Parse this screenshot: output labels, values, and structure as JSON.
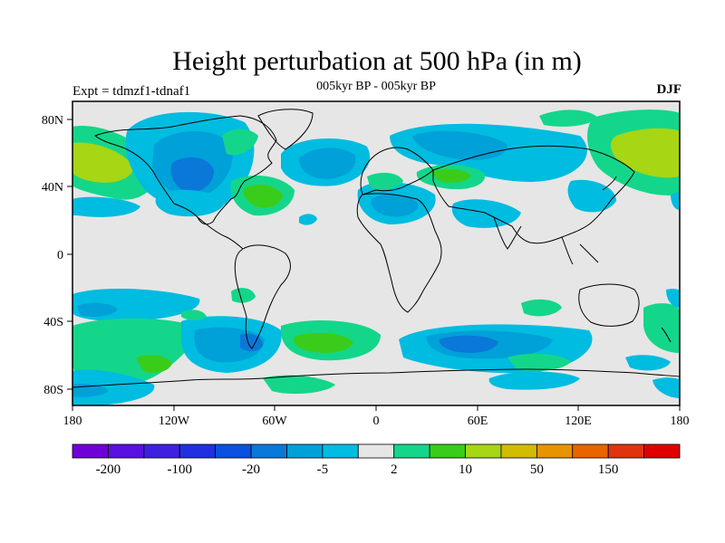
{
  "header": {
    "title": "Height perturbation at 500 hPa (in m)",
    "subtitle": "005kyr BP - 005kyr BP",
    "left_string": "Expt = tdmzf1-tdnaf1",
    "right_string": "DJF"
  },
  "map": {
    "projection": "cylindrical-equidistant",
    "x_ticks": [
      "180",
      "120W",
      "60W",
      "0",
      "60E",
      "120E",
      "180"
    ],
    "y_ticks": [
      "80N",
      "40N",
      "0",
      "40S",
      "80S"
    ],
    "background_color": "#e6e6e6",
    "coast_color": "#000000"
  },
  "colorbar": {
    "colors": [
      "#7000d8",
      "#5a10e0",
      "#4020e0",
      "#2030e0",
      "#0c50e0",
      "#0a78d8",
      "#00a0d8",
      "#00bce0",
      "#e6e6e6",
      "#14d68a",
      "#3acc1a",
      "#a6d614",
      "#d2bc00",
      "#e69400",
      "#e86400",
      "#e03410",
      "#e00000"
    ],
    "labels": [
      "-200",
      "-100",
      "-20",
      "-5",
      "2",
      "10",
      "50",
      "150"
    ]
  }
}
